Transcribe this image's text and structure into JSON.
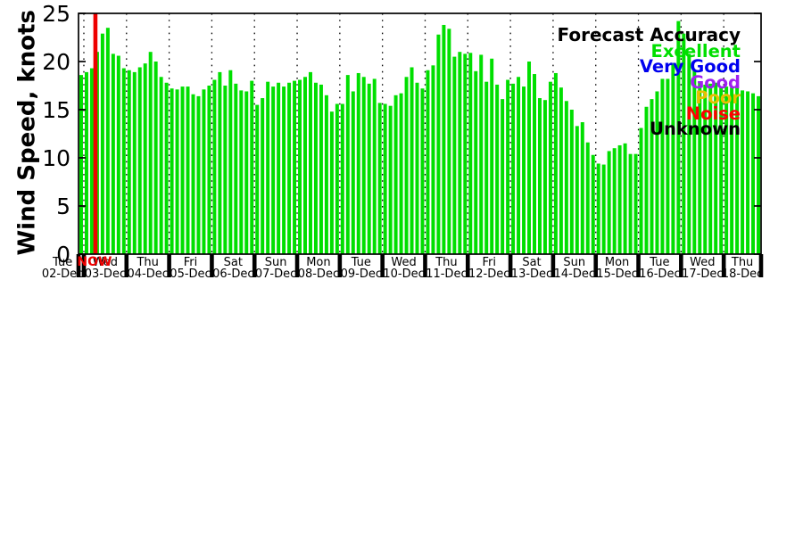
{
  "chart_data": {
    "type": "bar",
    "title": "",
    "ylabel": "Wind Speed, knots",
    "ylim": [
      0,
      25
    ],
    "yticks": [
      0,
      5,
      10,
      15,
      20,
      25
    ],
    "bar_color": "#00df00",
    "grid": "vertical-dotted-per-day",
    "legend_position": "top-right",
    "x_unit": "3-hour forecast intervals",
    "days": [
      {
        "day": "Tue",
        "date": "02-Dec",
        "values": [
          18.6
        ]
      },
      {
        "day": "Wed",
        "date": "03-Dec",
        "values": [
          18.9,
          19.3,
          21.0,
          22.9,
          23.5,
          20.8,
          20.6,
          19.3
        ]
      },
      {
        "day": "Thu",
        "date": "04-Dec",
        "values": [
          19.1,
          18.9,
          19.4,
          19.8,
          21.0,
          20.0,
          18.4,
          17.8
        ]
      },
      {
        "day": "Fri",
        "date": "05-Dec",
        "values": [
          17.2,
          17.1,
          17.4,
          17.4,
          16.6,
          16.4,
          17.1,
          17.5
        ]
      },
      {
        "day": "Sat",
        "date": "06-Dec",
        "values": [
          18.1,
          18.9,
          17.5,
          19.1,
          17.7,
          17.0,
          16.9,
          18.0
        ]
      },
      {
        "day": "Sun",
        "date": "07-Dec",
        "values": [
          15.5,
          16.2,
          17.9,
          17.4,
          17.8,
          17.4,
          17.8,
          18.0
        ]
      },
      {
        "day": "Mon",
        "date": "08-Dec",
        "values": [
          18.1,
          18.4,
          18.9,
          17.8,
          17.6,
          16.5,
          14.8,
          15.6
        ]
      },
      {
        "day": "Tue",
        "date": "09-Dec",
        "values": [
          15.6,
          18.6,
          16.9,
          18.8,
          18.4,
          17.7,
          18.2,
          15.7
        ]
      },
      {
        "day": "Wed",
        "date": "10-Dec",
        "values": [
          15.6,
          15.4,
          16.5,
          16.7,
          18.4,
          19.4,
          17.8,
          17.2
        ]
      },
      {
        "day": "Thu",
        "date": "11-Dec",
        "values": [
          19.1,
          19.6,
          22.8,
          23.8,
          23.4,
          20.5,
          21.0,
          20.8
        ]
      },
      {
        "day": "Fri",
        "date": "12-Dec",
        "values": [
          20.9,
          19.0,
          20.7,
          17.9,
          20.3,
          17.6,
          16.1,
          18.1
        ]
      },
      {
        "day": "Sat",
        "date": "13-Dec",
        "values": [
          17.7,
          18.4,
          17.4,
          20.0,
          18.7,
          16.2,
          16.0,
          17.9
        ]
      },
      {
        "day": "Sun",
        "date": "14-Dec",
        "values": [
          18.8,
          17.3,
          15.9,
          15.0,
          13.3,
          13.7,
          11.6,
          10.3
        ]
      },
      {
        "day": "Mon",
        "date": "15-Dec",
        "values": [
          9.4,
          9.3,
          10.7,
          11.0,
          11.3,
          11.5,
          10.4,
          10.4
        ]
      },
      {
        "day": "Tue",
        "date": "16-Dec",
        "values": [
          13.1,
          15.3,
          16.1,
          16.9,
          18.2,
          18.2,
          19.8,
          24.2
        ]
      },
      {
        "day": "Wed",
        "date": "17-Dec",
        "values": [
          22.9,
          20.8,
          19.1,
          17.9,
          17.6,
          17.7,
          17.8,
          17.3
        ]
      },
      {
        "day": "Thu",
        "date": "18-Dec",
        "values": [
          17.4,
          17.3,
          17.4,
          17.0,
          16.9,
          16.7,
          16.4
        ]
      }
    ],
    "now_marker": {
      "label": "NOW",
      "color": "#ee0000",
      "bar_index": 3
    }
  },
  "legend": {
    "title": "Forecast Accuracy",
    "entries": [
      {
        "label": "Excellent",
        "color": "#00df00"
      },
      {
        "label": "Very Good",
        "color": "#0000ee"
      },
      {
        "label": "Good",
        "color": "#a020f0"
      },
      {
        "label": "Poor",
        "color": "#e8c000"
      },
      {
        "label": "Noise",
        "color": "#ff0000"
      },
      {
        "label": "Unknown",
        "color": "#000000"
      }
    ]
  }
}
